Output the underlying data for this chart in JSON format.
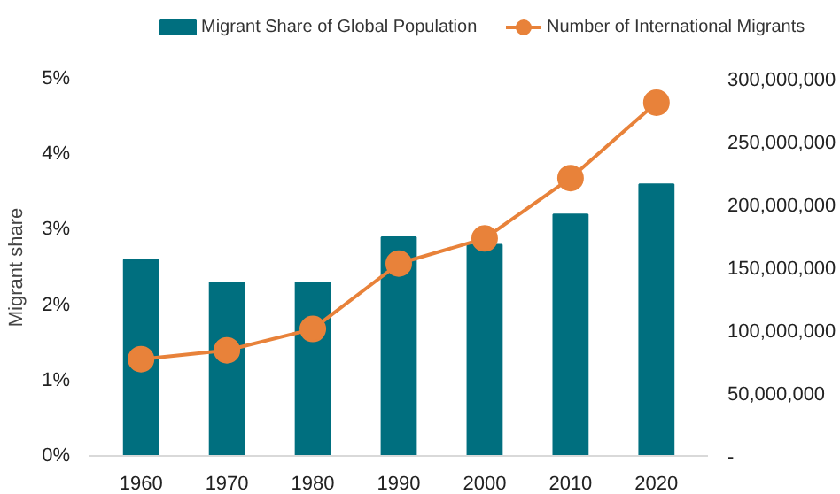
{
  "chart_data": {
    "type": "bar",
    "categories": [
      "1960",
      "1970",
      "1980",
      "1990",
      "2000",
      "2010",
      "2020"
    ],
    "ylabel": "Migrant share",
    "ylim": [
      0,
      5
    ],
    "yticks": [
      {
        "value": 0,
        "label": "0%"
      },
      {
        "value": 1,
        "label": "1%"
      },
      {
        "value": 2,
        "label": "2%"
      },
      {
        "value": 3,
        "label": "3%"
      },
      {
        "value": 4,
        "label": "4%"
      },
      {
        "value": 5,
        "label": "5%"
      }
    ],
    "y2lim": [
      0,
      300000000
    ],
    "y2ticks": [
      {
        "value": 0,
        "label": "-"
      },
      {
        "value": 50000000,
        "label": "50,000,000"
      },
      {
        "value": 100000000,
        "label": "100,000,000"
      },
      {
        "value": 150000000,
        "label": "150,000,000"
      },
      {
        "value": 200000000,
        "label": "200,000,000"
      },
      {
        "value": 250000000,
        "label": "250,000,000"
      },
      {
        "value": 300000000,
        "label": "300,000,000"
      }
    ],
    "series": [
      {
        "name": "Migrant Share of Global Population",
        "color": "#006f7f",
        "values": [
          2.6,
          2.3,
          2.3,
          2.9,
          2.8,
          3.2,
          3.6
        ]
      },
      {
        "name": "Number of International Migrants",
        "type": "line",
        "axis": "y2",
        "color": "#e8823a",
        "marker": "circle",
        "values": [
          77000000,
          84000000,
          101000000,
          153000000,
          173000000,
          221000000,
          281000000
        ]
      }
    ],
    "legend": "top",
    "grid": false
  }
}
